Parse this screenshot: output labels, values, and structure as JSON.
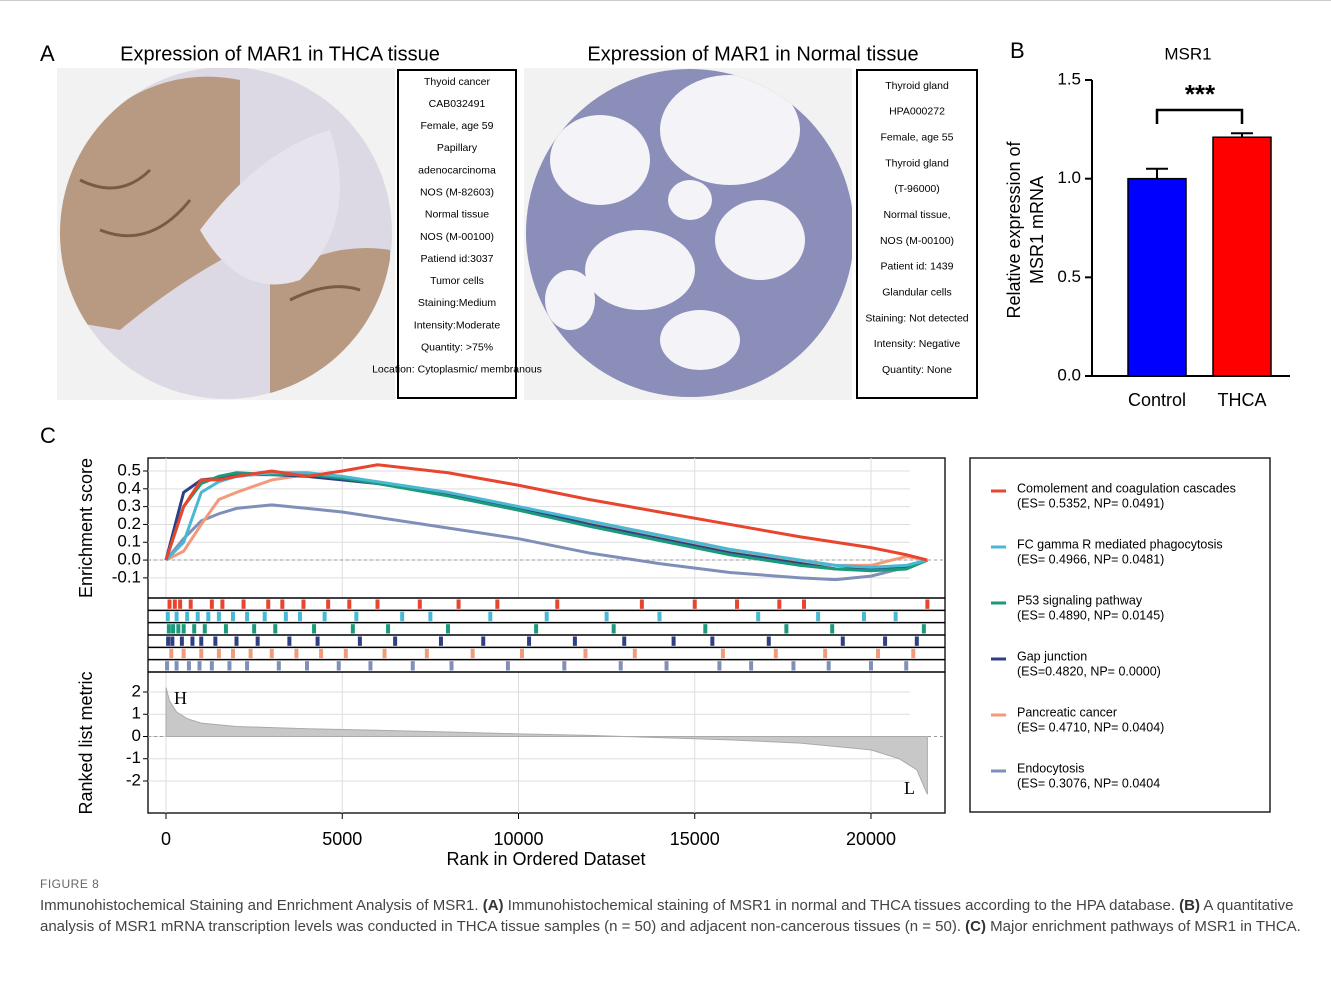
{
  "panel_a": {
    "label": "A",
    "images": [
      {
        "title": "Expression of MAR1 in THCA tissue",
        "info": [
          "Thyoid cancer",
          "CAB032491",
          "Female, age 59",
          "Papillary",
          "adenocarcinoma",
          "NOS (M-82603)",
          "Normal tissue",
          "NOS (M-00100)",
          "Patiend id:3037",
          "Tumor cells",
          "Staining:Medium",
          "Intensity:Moderate",
          "Quantity: >75%",
          "Location: Cytoplasmic/ membranous"
        ]
      },
      {
        "title": "Expression of MAR1 in Normal tissue",
        "info": [
          "Thyroid gland",
          "HPA000272",
          "Female, age 55",
          "Thyroid gland",
          "(T-96000)",
          "Normal tissue,",
          "NOS (M-00100)",
          "Patient id: 1439",
          "Glandular cells",
          "Staining: Not detected",
          "Intensity: Negative",
          "Quantity: None"
        ]
      }
    ]
  },
  "chart_data": [
    {
      "type": "bar",
      "panel_label": "B",
      "title": "MSR1",
      "ylabel": [
        "Relative expression of",
        "MSR1 mRNA"
      ],
      "categories": [
        "Control",
        "THCA"
      ],
      "values": [
        1.0,
        1.21
      ],
      "errors": [
        0.05,
        0.02
      ],
      "colors": [
        "#0000ff",
        "#ff0000"
      ],
      "ylim": [
        0,
        1.5
      ],
      "yticks": [
        {
          "value": 0,
          "label": "0.0"
        },
        0.5,
        {
          "value": 1,
          "label": "1.0"
        },
        1.5
      ],
      "annotation": "***"
    },
    {
      "type": "gsea",
      "panel_label": "C",
      "xlabel": "Rank in Ordered Dataset",
      "ylabel": "Enrichment score",
      "y2label": "Ranked list metric",
      "xlim": [
        -511,
        22100
      ],
      "xticks": [
        0,
        5000,
        10000,
        15000,
        20000
      ],
      "ylim": [
        -0.213,
        0.573
      ],
      "yticks": [
        0.5,
        0.4,
        0.3,
        0.2,
        0.1,
        {
          "value": 0,
          "label": "0.0"
        },
        -0.1
      ],
      "y2lim": [
        -3.44,
        2.9
      ],
      "y2ticks": [
        2,
        1,
        0,
        -1,
        -2
      ],
      "grid": true,
      "x": [
        0,
        500,
        1000,
        1500,
        2000,
        3000,
        4000,
        5000,
        6000,
        8000,
        10000,
        12000,
        14000,
        16000,
        18000,
        19000,
        20000,
        21000,
        21600
      ],
      "series": [
        {
          "name": "Comolement and coagulation cascades",
          "stats": "(ES= 0.5352, NP= 0.0491)",
          "color": "#e8442e",
          "values": [
            0,
            0.3,
            0.45,
            0.45,
            0.47,
            0.5,
            0.47,
            0.5,
            0.535,
            0.49,
            0.42,
            0.34,
            0.27,
            0.2,
            0.13,
            0.1,
            0.07,
            0.03,
            0
          ],
          "hits": [
            100,
            250,
            400,
            700,
            1300,
            1600,
            2200,
            2900,
            3300,
            3900,
            4600,
            5200,
            6000,
            7200,
            8300,
            9400,
            11100,
            13500,
            15000,
            16200,
            17400,
            18100,
            21600
          ]
        },
        {
          "name": "FC gamma R mediated phagocytosis",
          "stats": "(ES= 0.4966, NP= 0.0481)",
          "color": "#4ab8d2",
          "values": [
            0,
            0.1,
            0.38,
            0.44,
            0.47,
            0.49,
            0.49,
            0.47,
            0.44,
            0.38,
            0.3,
            0.22,
            0.14,
            0.06,
            0,
            -0.03,
            -0.04,
            -0.03,
            0
          ],
          "hits": [
            50,
            300,
            600,
            900,
            1200,
            1500,
            1900,
            2300,
            2800,
            3400,
            3800,
            4500,
            5400,
            6700,
            7500,
            9200,
            10800,
            12500,
            14000,
            16800,
            18500,
            19800,
            20700
          ]
        },
        {
          "name": "P53 signaling pathway",
          "stats": "(ES= 0.4890, NP= 0.0145)",
          "color": "#1a9a7a",
          "values": [
            0,
            0.3,
            0.43,
            0.47,
            0.49,
            0.48,
            0.48,
            0.46,
            0.43,
            0.36,
            0.28,
            0.19,
            0.11,
            0.03,
            -0.03,
            -0.05,
            -0.06,
            -0.05,
            0
          ],
          "hits": [
            80,
            200,
            350,
            500,
            800,
            1100,
            1700,
            2500,
            3100,
            4200,
            5300,
            6300,
            8000,
            10500,
            12700,
            15300,
            17600,
            18900,
            21500
          ]
        },
        {
          "name": "Gap junction",
          "stats": "(ES=0.4820, NP= 0.0000)",
          "color": "#2e3f85",
          "values": [
            0,
            0.38,
            0.45,
            0.46,
            0.48,
            0.48,
            0.47,
            0.45,
            0.43,
            0.37,
            0.29,
            0.2,
            0.12,
            0.04,
            -0.02,
            -0.05,
            -0.05,
            -0.04,
            0
          ],
          "hits": [
            60,
            180,
            450,
            750,
            1000,
            1400,
            2000,
            2600,
            3500,
            4300,
            5500,
            6500,
            7800,
            9000,
            10300,
            11600,
            13000,
            14400,
            15500,
            17100,
            19200,
            20400,
            21300
          ]
        },
        {
          "name": "Pancreatic cancer",
          "stats": "(ES= 0.4710, NP= 0.0404)",
          "color": "#f29a7a",
          "values": [
            0,
            0.05,
            0.2,
            0.34,
            0.38,
            0.45,
            0.48,
            0.46,
            0.43,
            0.37,
            0.29,
            0.21,
            0.13,
            0.05,
            -0.01,
            -0.03,
            -0.03,
            0.02,
            0
          ],
          "hits": [
            150,
            500,
            1000,
            1500,
            1900,
            2400,
            3000,
            3700,
            4400,
            5100,
            6200,
            7400,
            8700,
            10100,
            11900,
            13300,
            15800,
            17300,
            18700,
            20200,
            21200
          ]
        },
        {
          "name": "Endocytosis",
          "stats": "(ES= 0.3076, NP= 0.0404",
          "color": "#7f8fb8",
          "values": [
            0,
            0.12,
            0.22,
            0.26,
            0.29,
            0.31,
            0.29,
            0.27,
            0.24,
            0.18,
            0.12,
            0.04,
            -0.02,
            -0.07,
            -0.1,
            -0.11,
            -0.09,
            -0.04,
            0
          ],
          "hits": [
            30,
            300,
            650,
            950,
            1300,
            1800,
            2300,
            3200,
            4000,
            4900,
            5800,
            7000,
            8100,
            9700,
            11300,
            12900,
            14200,
            15700,
            16600,
            17800,
            18800,
            20000,
            21000
          ]
        }
      ],
      "metric": {
        "x": [
          0,
          100,
          300,
          600,
          1000,
          2000,
          4000,
          6000,
          8000,
          10000,
          12000,
          14000,
          16000,
          18000,
          20000,
          20800,
          21300,
          21600
        ],
        "values": [
          2.2,
          1.6,
          1.1,
          0.8,
          0.6,
          0.45,
          0.35,
          0.28,
          0.2,
          0.12,
          0.05,
          -0.05,
          -0.15,
          -0.3,
          -0.6,
          -1.0,
          -1.5,
          -2.6
        ]
      },
      "annotations": [
        "H",
        "L"
      ]
    }
  ],
  "caption": {
    "figure": "FIGURE 8",
    "title": "Immunohistochemical Staining and Enrichment Analysis of MSR1.",
    "items": [
      {
        "label": "(A)",
        "text": "Immunohistochemical staining of MSR1 in normal and THCA tissues according to the HPA database."
      },
      {
        "label": "(B)",
        "text": "A quantitative analysis of MSR1 mRNA transcription levels was conducted in THCA tissue samples (n = 50) and adjacent non-cancerous tissues (n = 50)."
      },
      {
        "label": "(C)",
        "text": "Major enrichment pathways of MSR1 in THCA."
      }
    ]
  }
}
